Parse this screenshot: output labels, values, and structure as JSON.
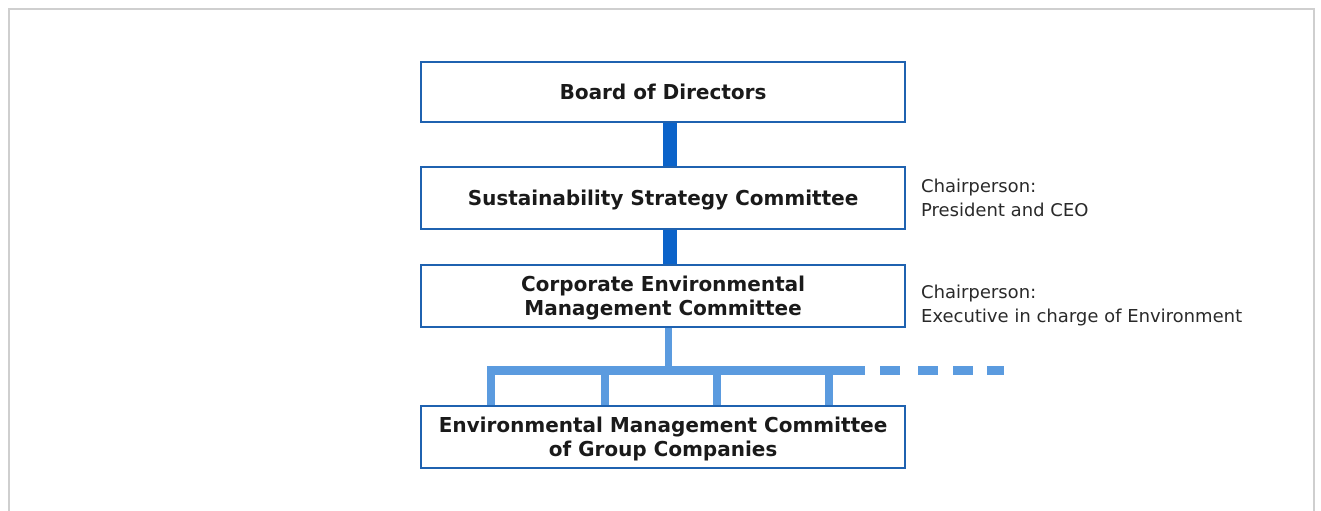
{
  "diagram": {
    "boxes": {
      "board": {
        "lines": [
          "Board of Directors"
        ]
      },
      "sustainability": {
        "lines": [
          "Sustainability Strategy Committee"
        ]
      },
      "corporate": {
        "lines": [
          "Corporate Environmental",
          "Management Committee"
        ]
      },
      "group": {
        "lines": [
          "Environmental Management Committee",
          "of Group Companies"
        ]
      }
    },
    "notes": {
      "sustainability": {
        "label": "Chairperson:",
        "value": "President and CEO"
      },
      "corporate": {
        "label": "Chairperson:",
        "value": "Executive in charge of Environment"
      }
    },
    "colors": {
      "box_border": "#1f62b0",
      "dark_connector": "#0b63c9",
      "light_connector": "#5b9bdf",
      "frame_border": "#cfcfcf"
    }
  }
}
